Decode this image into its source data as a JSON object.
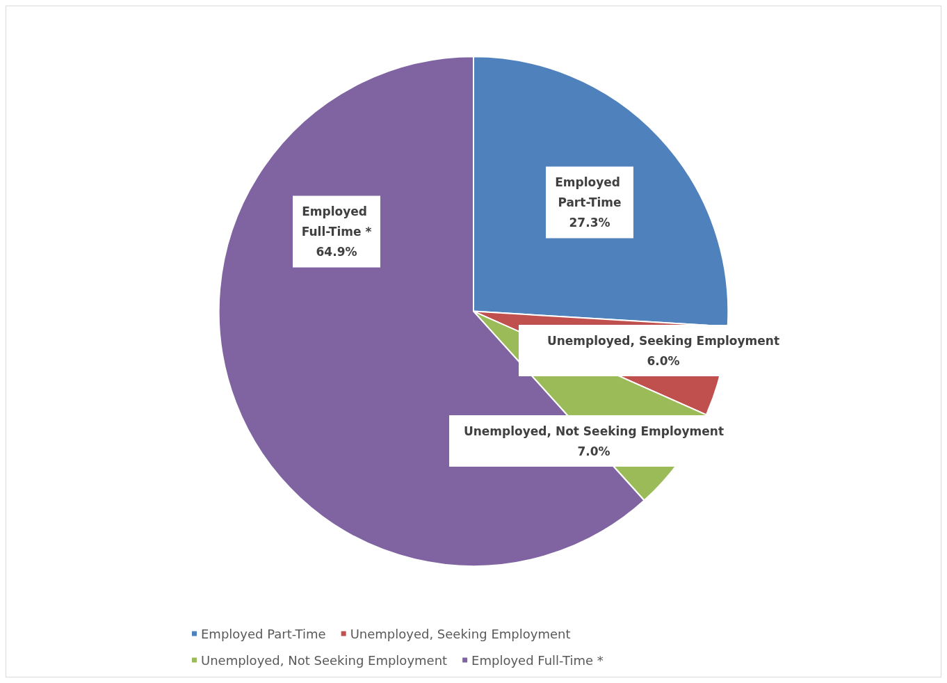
{
  "chart_data": {
    "type": "pie",
    "categories": [
      "Employed Part-Time",
      "Unemployed, Seeking Employment",
      "Unemployed, Not Seeking Employment",
      "Employed Full-Time *"
    ],
    "values": [
      27.3,
      6.0,
      7.0,
      64.9
    ],
    "colors": [
      "#4f81bd",
      "#c0504d",
      "#9bbb59",
      "#8064a2"
    ],
    "value_labels": [
      "27.3%",
      "6.0%",
      "7.0%",
      "64.9%"
    ],
    "legend": "bottom"
  }
}
